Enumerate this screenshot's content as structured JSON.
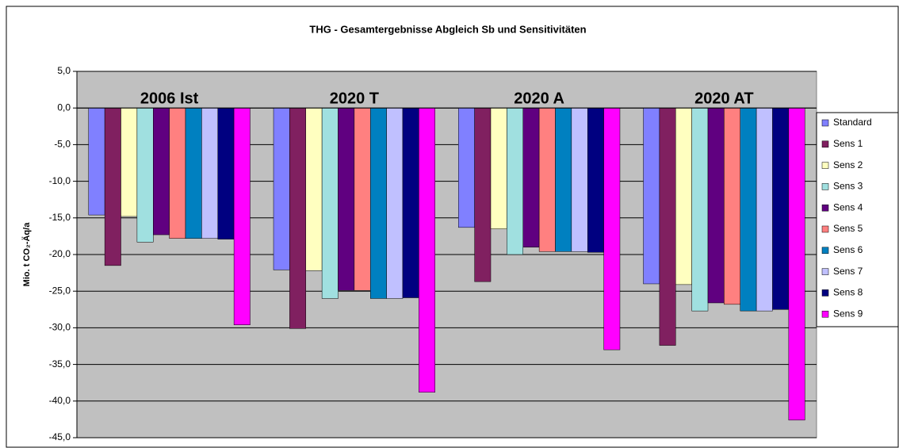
{
  "chart_data": {
    "type": "bar",
    "title": "THG - Gesamtergebnisse Abgleich Sb und Sensitivitäten",
    "y_label": "Mio. t CO₂-Äq/a",
    "categories": [
      "2006 Ist",
      "2020 T",
      "2020 A",
      "2020 AT"
    ],
    "ylim": [
      -45,
      5
    ],
    "yticks": [
      {
        "value": 5,
        "label": "5,0"
      },
      {
        "value": 0,
        "label": "0,0"
      },
      {
        "value": -5,
        "label": "-5,0"
      },
      {
        "value": -10,
        "label": "-10,0"
      },
      {
        "value": -15,
        "label": "-15,0"
      },
      {
        "value": -20,
        "label": "-20,0"
      },
      {
        "value": -25,
        "label": "-25,0"
      },
      {
        "value": -30,
        "label": "-30,0"
      },
      {
        "value": -35,
        "label": "-35,0"
      },
      {
        "value": -40,
        "label": "-40,0"
      },
      {
        "value": -45,
        "label": "-45,0"
      }
    ],
    "grid": true,
    "legend": "right",
    "series": [
      {
        "name": "Standard",
        "color": "#8080ff",
        "values": [
          -14.6,
          -22.1,
          -16.3,
          -24.0
        ]
      },
      {
        "name": "Sens 1",
        "color": "#802060",
        "values": [
          -21.5,
          -30.1,
          -23.7,
          -32.4
        ]
      },
      {
        "name": "Sens 2",
        "color": "#ffffc0",
        "values": [
          -14.8,
          -22.2,
          -16.5,
          -24.1
        ]
      },
      {
        "name": "Sens 3",
        "color": "#a0e0e0",
        "values": [
          -18.3,
          -26.0,
          -20.0,
          -27.7
        ]
      },
      {
        "name": "Sens 4",
        "color": "#600080",
        "values": [
          -17.3,
          -24.9,
          -19.0,
          -26.6
        ]
      },
      {
        "name": "Sens 5",
        "color": "#ff8080",
        "values": [
          -17.8,
          -24.9,
          -19.6,
          -26.8
        ]
      },
      {
        "name": "Sens 6",
        "color": "#0080c0",
        "values": [
          -17.8,
          -26.0,
          -19.6,
          -27.7
        ]
      },
      {
        "name": "Sens 7",
        "color": "#c0c0ff",
        "values": [
          -17.8,
          -26.0,
          -19.6,
          -27.7
        ]
      },
      {
        "name": "Sens 8",
        "color": "#000080",
        "values": [
          -17.9,
          -25.9,
          -19.7,
          -27.5
        ]
      },
      {
        "name": "Sens 9",
        "color": "#ff00ff",
        "values": [
          -29.6,
          -38.8,
          -33.0,
          -42.6
        ]
      }
    ]
  }
}
